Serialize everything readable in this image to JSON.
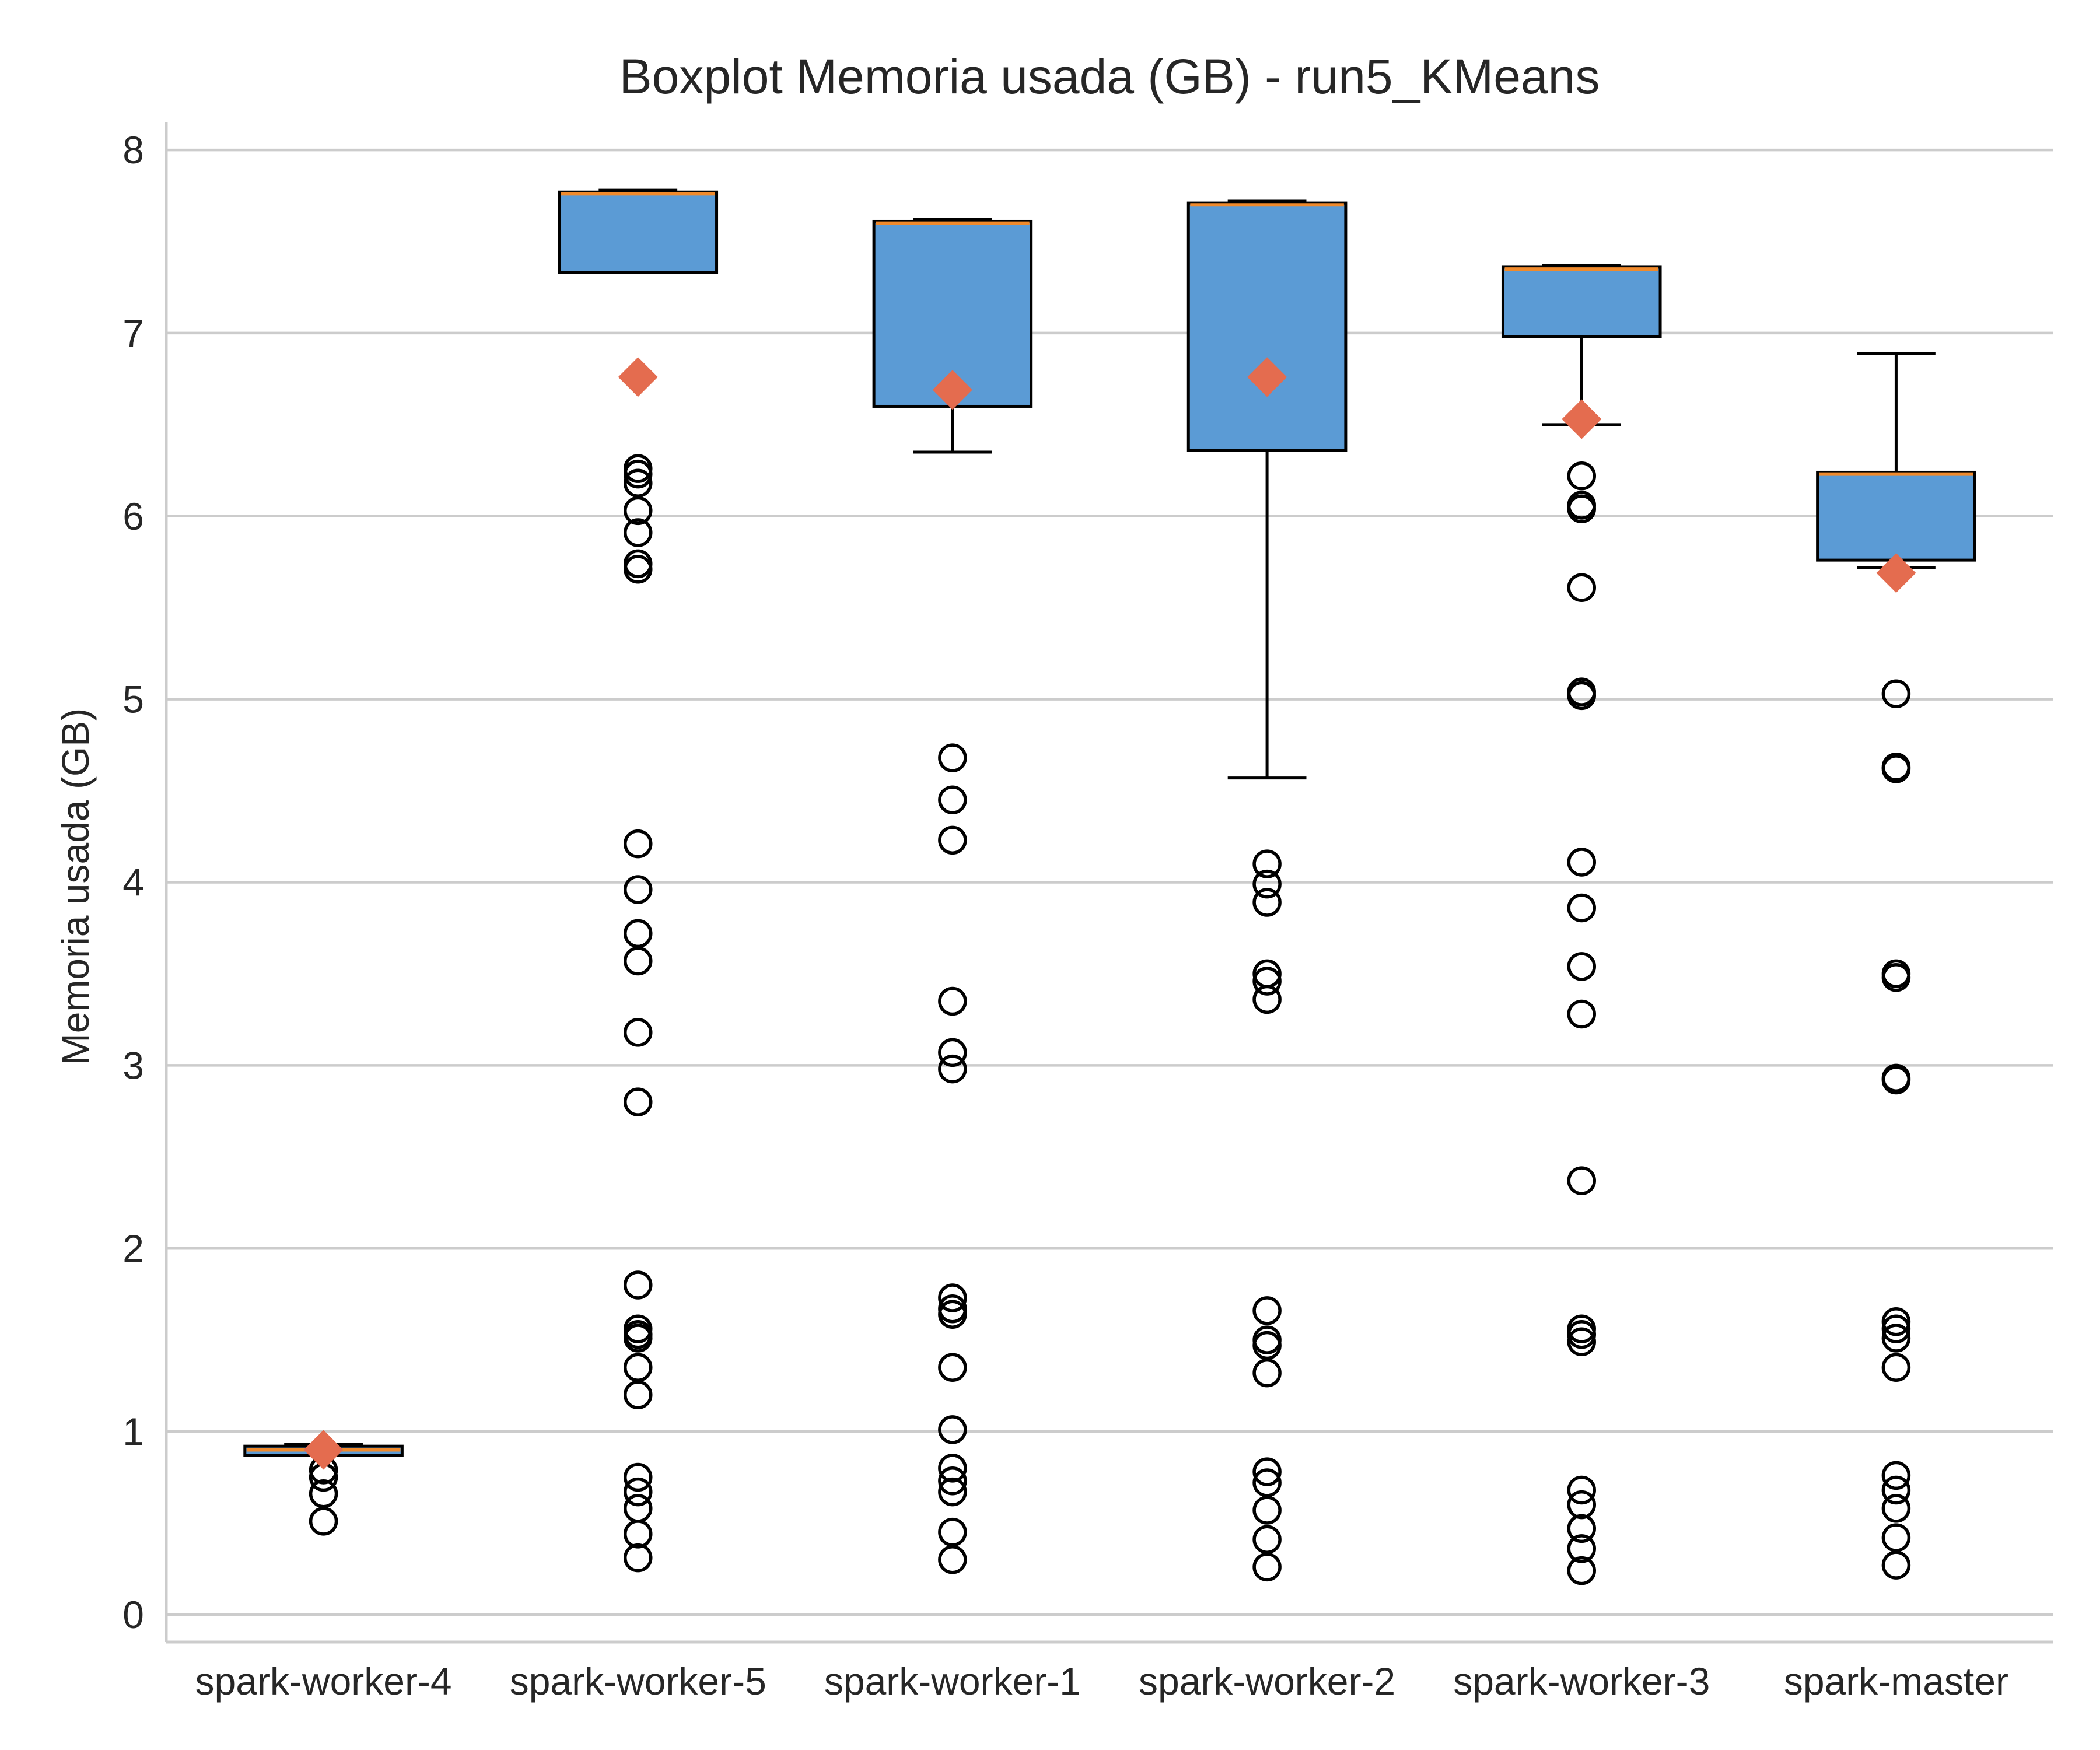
{
  "chart_data": {
    "type": "boxplot",
    "title": "Boxplot Memoria usada (GB) - run5_KMeans",
    "xlabel": "",
    "ylabel": "Memoria usada (GB)",
    "ylim": [
      -0.15,
      8.15
    ],
    "yticks": [
      0,
      1,
      2,
      3,
      4,
      5,
      6,
      7,
      8
    ],
    "grid": "y",
    "colors": {
      "box": "#5b9bd5",
      "median": "#f08a2c",
      "mean": "#e46c4f",
      "grid": "#cccccc",
      "edge": "#000000"
    },
    "categories": [
      "spark-worker-4",
      "spark-worker-5",
      "spark-worker-1",
      "spark-worker-2",
      "spark-worker-3",
      "spark-master"
    ],
    "boxes": [
      {
        "name": "spark-worker-4",
        "whisker_low": 0.87,
        "q1": 0.87,
        "median": 0.9,
        "q3": 0.92,
        "whisker_high": 0.93,
        "mean": 0.9,
        "outliers": [
          0.79,
          0.75,
          0.66,
          0.51
        ]
      },
      {
        "name": "spark-worker-5",
        "whisker_low": 7.33,
        "q1": 7.33,
        "median": 7.76,
        "q3": 7.77,
        "whisker_high": 7.78,
        "mean": 6.76,
        "outliers": [
          6.26,
          6.23,
          6.18,
          6.03,
          5.91,
          5.74,
          5.71,
          4.21,
          3.96,
          3.72,
          3.57,
          3.18,
          2.8,
          1.8,
          1.56,
          1.53,
          1.51,
          1.35,
          1.2,
          0.75,
          0.67,
          0.58,
          0.44,
          0.31
        ]
      },
      {
        "name": "spark-worker-1",
        "whisker_low": 6.35,
        "q1": 6.6,
        "median": 7.6,
        "q3": 7.61,
        "whisker_high": 7.62,
        "mean": 6.69,
        "outliers": [
          4.68,
          4.45,
          4.23,
          3.35,
          3.07,
          2.98,
          1.73,
          1.67,
          1.64,
          1.35,
          1.01,
          0.8,
          0.73,
          0.67,
          0.45,
          0.3
        ]
      },
      {
        "name": "spark-worker-2",
        "whisker_low": 4.57,
        "q1": 6.36,
        "median": 7.7,
        "q3": 7.71,
        "whisker_high": 7.72,
        "mean": 6.76,
        "outliers": [
          4.1,
          3.99,
          3.89,
          3.5,
          3.46,
          3.36,
          1.66,
          1.5,
          1.47,
          1.32,
          0.78,
          0.72,
          0.57,
          0.41,
          0.26
        ]
      },
      {
        "name": "spark-worker-3",
        "whisker_low": 6.5,
        "q1": 6.98,
        "median": 7.35,
        "q3": 7.36,
        "whisker_high": 7.37,
        "mean": 6.53,
        "outliers": [
          6.22,
          6.06,
          6.04,
          5.61,
          5.04,
          5.02,
          4.11,
          3.86,
          3.54,
          3.28,
          2.37,
          1.56,
          1.53,
          1.49,
          0.68,
          0.6,
          0.47,
          0.36,
          0.24
        ]
      },
      {
        "name": "spark-master",
        "whisker_low": 5.72,
        "q1": 5.76,
        "median": 6.23,
        "q3": 6.24,
        "whisker_high": 6.89,
        "mean": 5.69,
        "outliers": [
          5.03,
          4.63,
          4.62,
          3.5,
          3.48,
          2.93,
          2.92,
          1.6,
          1.56,
          1.51,
          1.35,
          0.76,
          0.68,
          0.58,
          0.42,
          0.27
        ]
      }
    ]
  }
}
